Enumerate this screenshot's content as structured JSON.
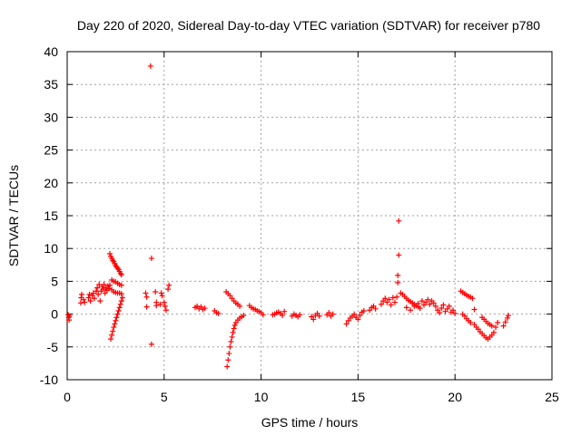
{
  "chart_data": {
    "type": "scatter",
    "title": "Day 220 of 2020, Sidereal Day-to-day VTEC variation (SDTVAR) for receiver p780",
    "xlabel": "GPS time / hours",
    "ylabel": "SDTVAR / TECUs",
    "xlim": [
      0,
      25
    ],
    "ylim": [
      -10,
      40
    ],
    "xticks": [
      "0",
      "5",
      "10",
      "15",
      "20",
      "25"
    ],
    "yticks": [
      "-10",
      "-5",
      "0",
      "5",
      "10",
      "15",
      "20",
      "25",
      "30",
      "35",
      "40"
    ],
    "xtick_values": [
      0,
      5,
      10,
      15,
      20,
      25
    ],
    "ytick_values": [
      -10,
      -5,
      0,
      5,
      10,
      15,
      20,
      25,
      30,
      35,
      40
    ],
    "grid": true,
    "marker": "+",
    "color": "#ff0000",
    "series": [
      {
        "name": "SDTVAR",
        "points": [
          [
            0.05,
            -0.1
          ],
          [
            0.08,
            -0.5
          ],
          [
            0.1,
            -0.9
          ],
          [
            0.12,
            -0.3
          ],
          [
            0.7,
            1.7
          ],
          [
            0.72,
            2.5
          ],
          [
            0.75,
            3.0
          ],
          [
            0.85,
            2.2
          ],
          [
            0.9,
            1.8
          ],
          [
            1.1,
            2.5
          ],
          [
            1.15,
            3.0
          ],
          [
            1.2,
            2.0
          ],
          [
            1.3,
            2.8
          ],
          [
            1.35,
            3.2
          ],
          [
            1.4,
            2.4
          ],
          [
            1.5,
            3.5
          ],
          [
            1.55,
            4.0
          ],
          [
            1.6,
            3.0
          ],
          [
            1.65,
            4.5
          ],
          [
            1.7,
            2.0
          ],
          [
            1.75,
            3.5
          ],
          [
            1.8,
            4.2
          ],
          [
            1.85,
            3.8
          ],
          [
            1.9,
            4.5
          ],
          [
            1.95,
            3.2
          ],
          [
            2.0,
            4.0
          ],
          [
            2.05,
            3.6
          ],
          [
            2.1,
            4.3
          ],
          [
            2.15,
            3.9
          ],
          [
            2.2,
            4.4
          ],
          [
            2.2,
            9.2
          ],
          [
            2.25,
            8.8
          ],
          [
            2.3,
            8.5
          ],
          [
            2.35,
            8.2
          ],
          [
            2.4,
            8.0
          ],
          [
            2.45,
            7.7
          ],
          [
            2.5,
            7.4
          ],
          [
            2.55,
            7.2
          ],
          [
            2.6,
            7.0
          ],
          [
            2.65,
            6.8
          ],
          [
            2.7,
            6.5
          ],
          [
            2.75,
            6.2
          ],
          [
            2.8,
            6.0
          ],
          [
            2.3,
            5.2
          ],
          [
            2.4,
            5.0
          ],
          [
            2.5,
            4.9
          ],
          [
            2.6,
            4.7
          ],
          [
            2.7,
            4.5
          ],
          [
            2.8,
            4.4
          ],
          [
            2.3,
            3.7
          ],
          [
            2.4,
            3.4
          ],
          [
            2.5,
            3.3
          ],
          [
            2.6,
            3.2
          ],
          [
            2.7,
            3.2
          ],
          [
            2.8,
            3.1
          ],
          [
            2.25,
            -3.8
          ],
          [
            2.3,
            -3.2
          ],
          [
            2.35,
            -2.6
          ],
          [
            2.4,
            -2.0
          ],
          [
            2.45,
            -1.5
          ],
          [
            2.5,
            -1.0
          ],
          [
            2.55,
            -0.5
          ],
          [
            2.6,
            0.0
          ],
          [
            2.65,
            0.5
          ],
          [
            2.7,
            1.0
          ],
          [
            2.75,
            1.5
          ],
          [
            2.8,
            2.0
          ],
          [
            2.85,
            2.5
          ],
          [
            4.05,
            3.2
          ],
          [
            4.1,
            2.6
          ],
          [
            4.1,
            1.1
          ],
          [
            4.3,
            37.8
          ],
          [
            4.35,
            8.5
          ],
          [
            4.35,
            -4.6
          ],
          [
            4.55,
            3.4
          ],
          [
            4.6,
            1.8
          ],
          [
            4.6,
            1.3
          ],
          [
            4.8,
            1.5
          ],
          [
            4.85,
            3.2
          ],
          [
            4.9,
            2.8
          ],
          [
            5.0,
            1.8
          ],
          [
            5.05,
            1.2
          ],
          [
            5.1,
            0.6
          ],
          [
            5.2,
            3.8
          ],
          [
            5.25,
            4.4
          ],
          [
            6.6,
            1.0
          ],
          [
            6.7,
            1.2
          ],
          [
            6.8,
            0.8
          ],
          [
            6.9,
            1.1
          ],
          [
            7.0,
            0.7
          ],
          [
            7.1,
            0.9
          ],
          [
            7.6,
            0.5
          ],
          [
            7.7,
            0.2
          ],
          [
            7.8,
            0.1
          ],
          [
            8.2,
            3.4
          ],
          [
            8.3,
            3.1
          ],
          [
            8.4,
            2.8
          ],
          [
            8.5,
            2.4
          ],
          [
            8.6,
            2.0
          ],
          [
            8.7,
            1.7
          ],
          [
            8.8,
            1.5
          ],
          [
            8.9,
            1.2
          ],
          [
            8.25,
            -8.0
          ],
          [
            8.3,
            -7.0
          ],
          [
            8.35,
            -6.0
          ],
          [
            8.4,
            -5.0
          ],
          [
            8.45,
            -4.2
          ],
          [
            8.5,
            -3.5
          ],
          [
            8.55,
            -2.8
          ],
          [
            8.6,
            -2.2
          ],
          [
            8.65,
            -1.7
          ],
          [
            8.7,
            -1.3
          ],
          [
            8.8,
            -0.9
          ],
          [
            8.9,
            -0.6
          ],
          [
            9.0,
            -0.4
          ],
          [
            9.1,
            -0.2
          ],
          [
            9.4,
            1.3
          ],
          [
            9.5,
            1.0
          ],
          [
            9.6,
            0.8
          ],
          [
            9.7,
            0.7
          ],
          [
            9.8,
            0.5
          ],
          [
            9.9,
            0.4
          ],
          [
            10.0,
            0.2
          ],
          [
            10.1,
            -0.1
          ],
          [
            10.6,
            -0.1
          ],
          [
            10.7,
            0.0
          ],
          [
            10.8,
            0.2
          ],
          [
            10.9,
            0.3
          ],
          [
            11.0,
            0.1
          ],
          [
            11.1,
            -0.2
          ],
          [
            11.2,
            0.4
          ],
          [
            11.6,
            -0.3
          ],
          [
            11.7,
            0.0
          ],
          [
            11.8,
            -0.2
          ],
          [
            11.9,
            -0.4
          ],
          [
            12.0,
            -0.1
          ],
          [
            12.6,
            -0.4
          ],
          [
            12.7,
            -0.8
          ],
          [
            12.8,
            -0.2
          ],
          [
            12.9,
            0.1
          ],
          [
            13.0,
            -0.3
          ],
          [
            13.4,
            -0.1
          ],
          [
            13.5,
            0.2
          ],
          [
            13.6,
            -0.3
          ],
          [
            13.7,
            0.0
          ],
          [
            14.4,
            -1.5
          ],
          [
            14.5,
            -1.0
          ],
          [
            14.6,
            -0.6
          ],
          [
            14.7,
            -0.3
          ],
          [
            14.8,
            0.0
          ],
          [
            14.9,
            -0.5
          ],
          [
            15.0,
            -0.8
          ],
          [
            15.1,
            -0.2
          ],
          [
            15.2,
            0.3
          ],
          [
            15.3,
            0.5
          ],
          [
            15.6,
            0.6
          ],
          [
            15.7,
            1.0
          ],
          [
            15.8,
            1.2
          ],
          [
            15.9,
            0.8
          ],
          [
            16.2,
            1.5
          ],
          [
            16.3,
            2.0
          ],
          [
            16.4,
            2.4
          ],
          [
            16.5,
            1.8
          ],
          [
            16.6,
            2.2
          ],
          [
            16.7,
            1.4
          ],
          [
            16.8,
            2.5
          ],
          [
            16.9,
            1.8
          ],
          [
            17.0,
            2.6
          ],
          [
            17.05,
            4.8
          ],
          [
            17.05,
            5.9
          ],
          [
            17.1,
            14.2
          ],
          [
            17.1,
            9.0
          ],
          [
            17.2,
            3.2
          ],
          [
            17.3,
            3.0
          ],
          [
            17.4,
            2.7
          ],
          [
            17.5,
            2.4
          ],
          [
            17.6,
            2.1
          ],
          [
            17.7,
            1.9
          ],
          [
            17.8,
            1.7
          ],
          [
            17.9,
            1.5
          ],
          [
            18.0,
            1.3
          ],
          [
            18.1,
            1.1
          ],
          [
            18.2,
            0.9
          ],
          [
            17.5,
            1.0
          ],
          [
            17.7,
            0.6
          ],
          [
            17.9,
            1.2
          ],
          [
            18.1,
            1.6
          ],
          [
            18.3,
            2.0
          ],
          [
            18.4,
            1.4
          ],
          [
            18.5,
            1.8
          ],
          [
            18.6,
            2.2
          ],
          [
            18.7,
            1.5
          ],
          [
            18.8,
            2.0
          ],
          [
            18.9,
            1.7
          ],
          [
            19.0,
            1.2
          ],
          [
            19.1,
            0.6
          ],
          [
            19.2,
            0.2
          ],
          [
            19.3,
            0.9
          ],
          [
            19.4,
            1.4
          ],
          [
            19.5,
            0.4
          ],
          [
            19.6,
            0.8
          ],
          [
            19.7,
            1.2
          ],
          [
            19.8,
            0.3
          ],
          [
            19.9,
            0.6
          ],
          [
            20.0,
            0.1
          ],
          [
            20.3,
            3.5
          ],
          [
            20.4,
            3.3
          ],
          [
            20.5,
            3.1
          ],
          [
            20.6,
            2.9
          ],
          [
            20.7,
            2.7
          ],
          [
            20.8,
            2.6
          ],
          [
            20.9,
            2.4
          ],
          [
            20.4,
            0.0
          ],
          [
            20.5,
            -0.3
          ],
          [
            20.6,
            -0.7
          ],
          [
            20.7,
            -1.0
          ],
          [
            20.8,
            -1.3
          ],
          [
            21.0,
            0.7
          ],
          [
            21.0,
            -1.6
          ],
          [
            21.1,
            -2.0
          ],
          [
            21.2,
            -2.3
          ],
          [
            21.3,
            -2.7
          ],
          [
            21.4,
            -3.0
          ],
          [
            21.5,
            -3.3
          ],
          [
            21.6,
            -3.6
          ],
          [
            21.7,
            -3.8
          ],
          [
            21.8,
            -3.5
          ],
          [
            21.9,
            -3.2
          ],
          [
            22.0,
            -2.8
          ],
          [
            21.4,
            -0.5
          ],
          [
            21.5,
            -0.8
          ],
          [
            21.6,
            -1.1
          ],
          [
            21.7,
            -1.4
          ],
          [
            21.8,
            -1.6
          ],
          [
            21.9,
            -1.8
          ],
          [
            22.1,
            -2.0
          ],
          [
            22.2,
            -1.3
          ],
          [
            22.5,
            -1.8
          ],
          [
            22.6,
            -1.2
          ],
          [
            22.7,
            -0.6
          ],
          [
            22.75,
            -0.2
          ]
        ]
      }
    ]
  }
}
